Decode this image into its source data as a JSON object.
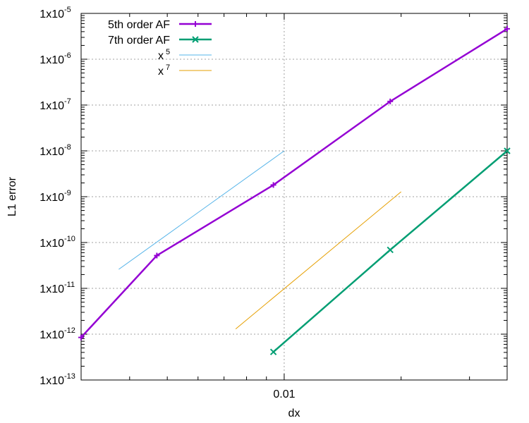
{
  "chart_data": {
    "type": "line",
    "xscale": "log",
    "yscale": "log",
    "xlabel": "dx",
    "ylabel": "L1 error",
    "xlim": [
      0.003,
      0.0375
    ],
    "ylim": [
      1e-13,
      1e-05
    ],
    "xtick_labels": [
      {
        "x": 0.01,
        "label": "0.01"
      }
    ],
    "ytick_labels": [
      {
        "y": 1e-13,
        "mantissa": "1x10",
        "exponent": "-13"
      },
      {
        "y": 1e-12,
        "mantissa": "1x10",
        "exponent": "-12"
      },
      {
        "y": 1e-11,
        "mantissa": "1x10",
        "exponent": "-11"
      },
      {
        "y": 1e-10,
        "mantissa": "1x10",
        "exponent": "-10"
      },
      {
        "y": 1e-09,
        "mantissa": "1x10",
        "exponent": "-9"
      },
      {
        "y": 1e-08,
        "mantissa": "1x10",
        "exponent": "-8"
      },
      {
        "y": 1e-07,
        "mantissa": "1x10",
        "exponent": "-7"
      },
      {
        "y": 1e-06,
        "mantissa": "1x10",
        "exponent": "-6"
      },
      {
        "y": 1e-05,
        "mantissa": "1x10",
        "exponent": "-5"
      }
    ],
    "grid": true,
    "legend_position": "top-left",
    "series": [
      {
        "name": "5th order AF",
        "color": "#9400d3",
        "marker": "plus",
        "style": "solid-thick",
        "x": [
          0.003,
          0.0047,
          0.00938,
          0.01875,
          0.0375
        ],
        "y": [
          8.5e-13,
          5.2e-11,
          1.8e-09,
          1.2e-07,
          4.6e-06
        ]
      },
      {
        "name": "7th order AF",
        "color": "#009e73",
        "marker": "x",
        "style": "solid-thick",
        "x": [
          0.00938,
          0.01875,
          0.0375
        ],
        "y": [
          4.1e-13,
          6.9e-11,
          1e-08
        ]
      },
      {
        "name": "x",
        "name_superscript": "5",
        "color": "#56b4e9",
        "marker": "none",
        "style": "solid-thin",
        "x": [
          0.00375,
          0.01
        ],
        "y": [
          2.6e-11,
          1e-08
        ]
      },
      {
        "name": "x",
        "name_superscript": "7",
        "color": "#e69f00",
        "marker": "none",
        "style": "solid-thin",
        "x": [
          0.0075,
          0.02
        ],
        "y": [
          1.3e-12,
          1.28e-09
        ]
      }
    ]
  }
}
